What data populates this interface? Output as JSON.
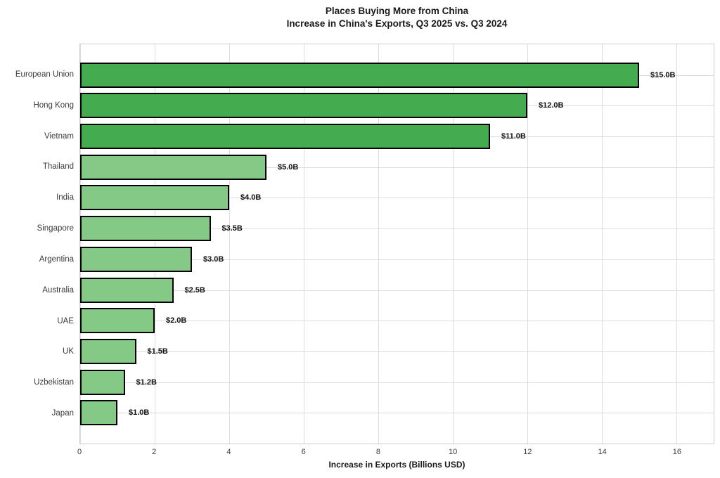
{
  "chart_data": {
    "type": "bar",
    "orientation": "horizontal",
    "title": "Places Buying More from China",
    "subtitle": "Increase in China's Exports, Q3 2025 vs. Q3 2024",
    "xlabel": "Increase in Exports (Billions USD)",
    "categories": [
      "European Union",
      "Hong Kong",
      "Vietnam",
      "Thailand",
      "India",
      "Singapore",
      "Argentina",
      "Australia",
      "UAE",
      "UK",
      "Uzbekistan",
      "Japan"
    ],
    "values": [
      15.0,
      12.0,
      11.0,
      5.0,
      4.0,
      3.5,
      3.0,
      2.5,
      2.0,
      1.5,
      1.2,
      1.0
    ],
    "value_labels": [
      "$15.0B",
      "$12.0B",
      "$11.0B",
      "$5.0B",
      "$4.0B",
      "$3.5B",
      "$3.0B",
      "$2.5B",
      "$2.0B",
      "$1.5B",
      "$1.2B",
      "$1.0B"
    ],
    "bar_colors": [
      "#44ab4e",
      "#44ab4e",
      "#44ab4e",
      "#85c987",
      "#85c987",
      "#85c987",
      "#85c987",
      "#85c987",
      "#85c987",
      "#85c987",
      "#85c987",
      "#85c987"
    ],
    "bar_border_color": "#000000",
    "xlim": [
      0,
      17
    ],
    "xticks": [
      0,
      2,
      4,
      6,
      8,
      10,
      12,
      14,
      16
    ],
    "xtick_labels": [
      "0",
      "2",
      "4",
      "6",
      "8",
      "10",
      "12",
      "14",
      "16"
    ],
    "grid": true,
    "grid_color": "#dcdcdc",
    "spine_color": "#cccccc",
    "legend": "none",
    "title_color": "#1a1a1a",
    "tick_label_color": "#3a3a3a",
    "value_label_color": "#111111"
  }
}
